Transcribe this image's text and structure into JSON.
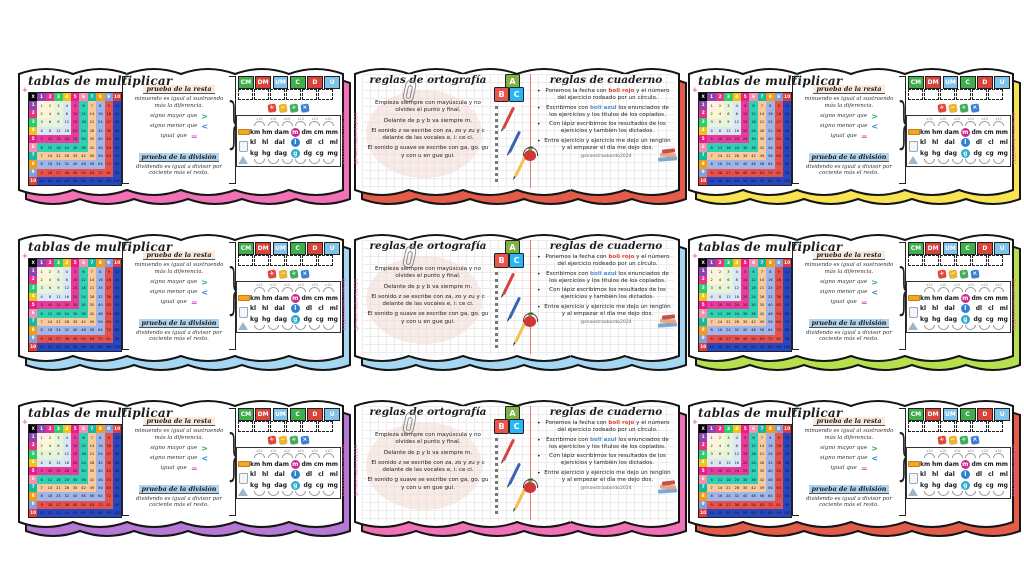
{
  "layout": {
    "cards": [
      {
        "type": "tablas",
        "border_color": "#f171b6"
      },
      {
        "type": "reglas",
        "border_color": "#e25c49"
      },
      {
        "type": "tablas",
        "border_color": "#f8e352"
      },
      {
        "type": "tablas",
        "border_color": "#a6d7f2"
      },
      {
        "type": "reglas",
        "border_color": "#a6d7f2"
      },
      {
        "type": "tablas",
        "border_color": "#b6e04e"
      },
      {
        "type": "tablas",
        "border_color": "#b579d5"
      },
      {
        "type": "reglas",
        "border_color": "#f171b6"
      },
      {
        "type": "tablas",
        "border_color": "#e25c49"
      }
    ]
  },
  "decor": {
    "sparkle_plus": "+"
  },
  "tablas": {
    "title": "tablas de multiplicar",
    "table": {
      "corner": "X",
      "corner_color": "#000000",
      "headers": [
        1,
        2,
        3,
        4,
        5,
        6,
        7,
        8,
        9,
        10
      ],
      "header_colors": [
        "#8e44ad",
        "#e9308f",
        "#2ecc71",
        "#f1c40f",
        "#e91e8c",
        "#f48fb1",
        "#16b8a2",
        "#f39c12",
        "#7f9fe0",
        "#e53935"
      ],
      "band_colors": [
        "#fdf0e4",
        "#fbf6d6",
        "#e8f4da",
        "#d8e7f6",
        "#ea3a9b",
        "#2fd0b4",
        "#f8c99a",
        "#9fb4e8",
        "#e8514a",
        "#2547c4"
      ]
    },
    "resta": {
      "heading": "prueba de la resta",
      "body": "minuendo es igual al sustraendo más la diferencia."
    },
    "signos": [
      {
        "label": "signo mayor que",
        "symbol": ">",
        "color": "#2eaf5b"
      },
      {
        "label": "signo menor que",
        "symbol": "<",
        "color": "#2e7fd5"
      },
      {
        "label": "igual que",
        "symbol": "=",
        "color": "#d94fc0"
      }
    ],
    "division": {
      "heading": "prueba de la división",
      "body": "dividendo es igual a divisor por cociente más el resto."
    },
    "place_values": [
      {
        "label": "CM",
        "color": "#3faf4e"
      },
      {
        "label": "DM",
        "color": "#d8433a"
      },
      {
        "label": "UM",
        "color": "#7fc4e8"
      },
      {
        "label": "C",
        "color": "#3faf4e"
      },
      {
        "label": "D",
        "color": "#d8433a"
      },
      {
        "label": "U",
        "color": "#7fc4e8"
      }
    ],
    "operations": [
      {
        "symbol": "+",
        "color": "#e8433a"
      },
      {
        "symbol": "−",
        "color": "#f0b429"
      },
      {
        "symbol": "÷",
        "color": "#3fae5a"
      },
      {
        "symbol": "×",
        "color": "#3a7fd5"
      }
    ],
    "units": {
      "arc_label": "x10",
      "rows": [
        {
          "units": [
            "km",
            "hm",
            "dam",
            "m",
            "dm",
            "cm",
            "mm"
          ],
          "highlight": 3,
          "circle_color": "#cc2a8d"
        },
        {
          "units": [
            "kl",
            "hl",
            "dal",
            "l",
            "dl",
            "cl",
            "ml"
          ],
          "highlight": 3,
          "circle_color": "#2e7fd5"
        },
        {
          "units": [
            "kg",
            "hg",
            "dag",
            "g",
            "dg",
            "cg",
            "mg"
          ],
          "highlight": 3,
          "circle_color": "#29a8c9"
        }
      ]
    },
    "side_credit": "@maestraabordo2024"
  },
  "reglas": {
    "left_title": "reglas de ortografía",
    "right_title": "reglas de cuaderno",
    "ortografia_rules": [
      "Empieza siempre con mayúscula y no olvides el punto y final.",
      "Delante de p y b va siempre m.",
      "El sonido z se escribe con za, zo y zu y c delante de las vocales e, i: ce ci.",
      "El sonido g suave se escribe con ga, go, gu y con u en gue gui."
    ],
    "blocks": [
      {
        "letter": "A",
        "color": "#7cb342"
      },
      {
        "letter": "B",
        "color": "#e8554d"
      },
      {
        "letter": "C",
        "color": "#29b6f6"
      }
    ],
    "cuaderno_rules": [
      [
        {
          "text": "Ponemos la fecha con "
        },
        {
          "text": "boli rojo",
          "color": "#e04438"
        },
        {
          "text": " y el número del ejercicio rodeado por un círculo."
        }
      ],
      [
        {
          "text": "Escribimos con "
        },
        {
          "text": "boli azul",
          "color": "#4a90d9"
        },
        {
          "text": " los enunciados de los ejercicios y los títulos de los copiados."
        }
      ],
      [
        {
          "text": "Con lápiz escribimos los resultados de los ejercicios y también los dictados."
        }
      ],
      [
        {
          "text": "Entre ejercicio y ejercicio me dejo un renglón y al empezar el día me dejo dos."
        }
      ]
    ],
    "handle": "@maestraabordo2024",
    "side_credit": "@maestraabordo2024"
  }
}
